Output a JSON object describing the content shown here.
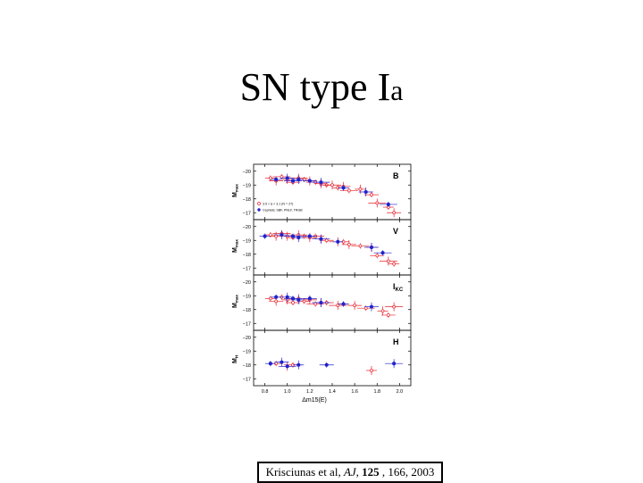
{
  "slide": {
    "title_main": "SN type I",
    "title_sub": "a",
    "caption": {
      "authors": "Krisciunas et al, ",
      "journal": "AJ",
      "sep1": ", ",
      "volume": "125",
      "rest": " , 166, 2003"
    }
  },
  "colors": {
    "red_series": "#e8202a",
    "blue_series": "#2222cc",
    "axis": "#000000"
  },
  "chart_data": {
    "type": "scatter",
    "xlabel": "Δm15(E)",
    "xlim": [
      0.7,
      2.1
    ],
    "x_ticks": [
      0.8,
      1.0,
      1.2,
      1.4,
      1.6,
      1.8,
      2.0
    ],
    "x_tick_labels": [
      "0.8",
      "1.0",
      "1.2",
      "1.4",
      "1.6",
      "1.8",
      "2.0"
    ],
    "ylim": [
      -20.5,
      -16.5
    ],
    "y_ticks": [
      -20,
      -19,
      -18,
      -17
    ],
    "y_tick_labels": [
      "−20",
      "−19",
      "−18",
      "−17"
    ],
    "legend": [
      {
        "name": "3.5 < Δ < 3.1 (N = 27)",
        "marker": "open-circle",
        "color": "red"
      },
      {
        "name": "Cepheid, SBF, PNLF, TRGB",
        "marker": "filled-circle",
        "color": "blue"
      }
    ],
    "panels": [
      {
        "band": "B",
        "band_sub": "",
        "ylabel": "M",
        "ylabel_sub": "max",
        "red": [
          [
            0.85,
            -19.5
          ],
          [
            0.9,
            -19.3
          ],
          [
            0.95,
            -19.6
          ],
          [
            1.0,
            -19.4
          ],
          [
            1.05,
            -19.2
          ],
          [
            1.1,
            -19.5
          ],
          [
            1.15,
            -19.4
          ],
          [
            1.2,
            -19.3
          ],
          [
            1.25,
            -19.2
          ],
          [
            1.3,
            -19.1
          ],
          [
            1.35,
            -19.0
          ],
          [
            1.4,
            -19.0
          ],
          [
            1.45,
            -18.8
          ],
          [
            1.5,
            -18.9
          ],
          [
            1.55,
            -18.6
          ],
          [
            1.65,
            -18.7
          ],
          [
            1.75,
            -18.3
          ],
          [
            1.8,
            -17.7
          ],
          [
            1.9,
            -17.4
          ],
          [
            1.95,
            -17.0
          ]
        ],
        "blue": [
          [
            0.9,
            -19.4
          ],
          [
            1.0,
            -19.5
          ],
          [
            1.05,
            -19.3
          ],
          [
            1.1,
            -19.4
          ],
          [
            1.2,
            -19.3
          ],
          [
            1.3,
            -19.2
          ],
          [
            1.5,
            -18.8
          ],
          [
            1.7,
            -18.5
          ],
          [
            1.9,
            -17.6
          ]
        ]
      },
      {
        "band": "V",
        "band_sub": "",
        "ylabel": "M",
        "ylabel_sub": "max",
        "red": [
          [
            0.85,
            -19.4
          ],
          [
            0.9,
            -19.3
          ],
          [
            0.95,
            -19.5
          ],
          [
            1.0,
            -19.3
          ],
          [
            1.05,
            -19.2
          ],
          [
            1.1,
            -19.4
          ],
          [
            1.15,
            -19.3
          ],
          [
            1.2,
            -19.2
          ],
          [
            1.25,
            -19.3
          ],
          [
            1.3,
            -19.1
          ],
          [
            1.35,
            -19.0
          ],
          [
            1.45,
            -18.9
          ],
          [
            1.5,
            -18.9
          ],
          [
            1.55,
            -18.7
          ],
          [
            1.65,
            -18.6
          ],
          [
            1.75,
            -18.5
          ],
          [
            1.8,
            -17.9
          ],
          [
            1.9,
            -17.5
          ],
          [
            1.95,
            -17.3
          ]
        ],
        "blue": [
          [
            0.8,
            -19.3
          ],
          [
            0.95,
            -19.4
          ],
          [
            1.05,
            -19.3
          ],
          [
            1.1,
            -19.2
          ],
          [
            1.2,
            -19.3
          ],
          [
            1.3,
            -19.1
          ],
          [
            1.45,
            -18.9
          ],
          [
            1.75,
            -18.5
          ],
          [
            1.85,
            -18.1
          ]
        ]
      },
      {
        "band": "I",
        "band_sub": "KC",
        "ylabel": "M",
        "ylabel_sub": "max",
        "red": [
          [
            0.85,
            -18.8
          ],
          [
            0.9,
            -18.6
          ],
          [
            0.95,
            -18.9
          ],
          [
            1.0,
            -18.7
          ],
          [
            1.05,
            -18.5
          ],
          [
            1.1,
            -18.8
          ],
          [
            1.15,
            -18.6
          ],
          [
            1.2,
            -18.7
          ],
          [
            1.25,
            -18.4
          ],
          [
            1.3,
            -18.5
          ],
          [
            1.35,
            -18.5
          ],
          [
            1.45,
            -18.3
          ],
          [
            1.5,
            -18.4
          ],
          [
            1.6,
            -18.3
          ],
          [
            1.7,
            -18.1
          ],
          [
            1.85,
            -17.9
          ],
          [
            1.9,
            -17.6
          ],
          [
            1.95,
            -18.2
          ]
        ],
        "blue": [
          [
            0.9,
            -18.9
          ],
          [
            1.0,
            -18.9
          ],
          [
            1.05,
            -18.8
          ],
          [
            1.1,
            -18.7
          ],
          [
            1.2,
            -18.8
          ],
          [
            1.3,
            -18.5
          ],
          [
            1.5,
            -18.4
          ],
          [
            1.75,
            -18.2
          ]
        ]
      },
      {
        "band": "H",
        "band_sub": "",
        "ylabel": "M",
        "ylabel_sub": "H",
        "red": [
          [
            0.9,
            -18.1
          ],
          [
            1.0,
            -17.9
          ],
          [
            1.05,
            -18.0
          ],
          [
            1.75,
            -17.6
          ]
        ],
        "blue": [
          [
            0.85,
            -18.1
          ],
          [
            0.95,
            -18.2
          ],
          [
            1.0,
            -17.9
          ],
          [
            1.1,
            -18.0
          ],
          [
            1.35,
            -18.0
          ],
          [
            1.95,
            -18.1
          ]
        ]
      }
    ]
  }
}
